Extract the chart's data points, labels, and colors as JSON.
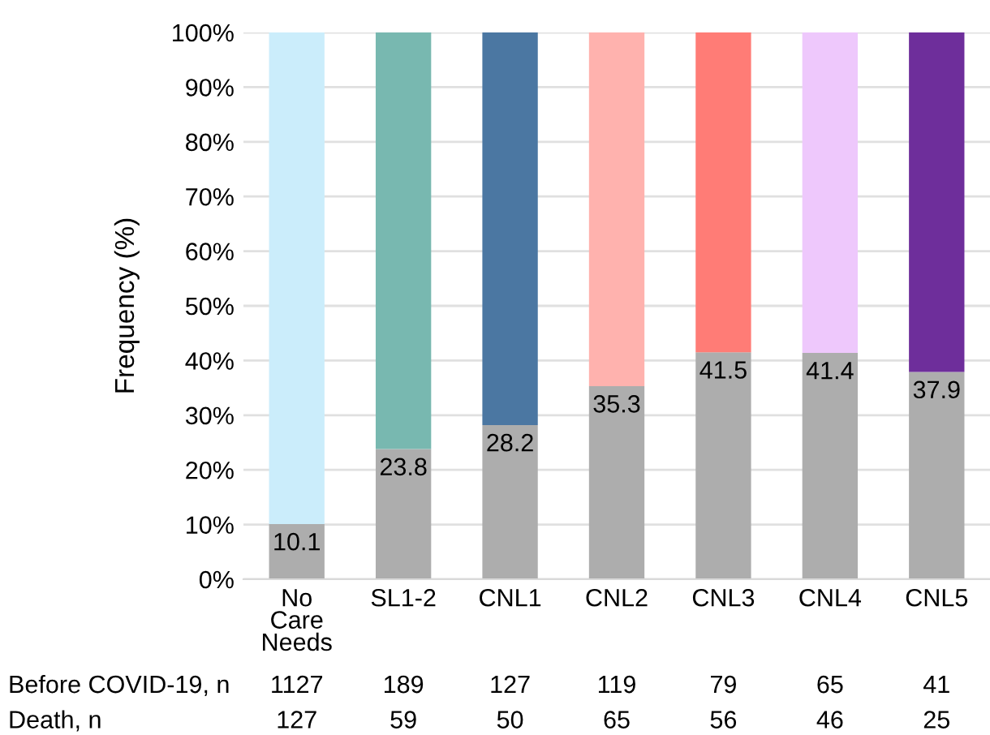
{
  "chart_data": {
    "type": "bar",
    "stacked": true,
    "ylabel": "Frequency (%)",
    "categories": [
      "No Care Needs",
      "SL1-2",
      "CNL1",
      "CNL2",
      "CNL3",
      "CNL4",
      "CNL5"
    ],
    "series": [
      {
        "color": "#adadad",
        "values": [
          10.1,
          23.8,
          28.2,
          35.3,
          41.5,
          41.4,
          37.9
        ],
        "value_labels": [
          "10.1",
          "23.8",
          "28.2",
          "35.3",
          "41.5",
          "41.4",
          "37.9"
        ]
      },
      {
        "colors": [
          "#cbedfb",
          "#78b8b0",
          "#4b77a2",
          "#ffb2ae",
          "#ff7c76",
          "#eec8fc",
          "#6e2e9b"
        ],
        "values": [
          89.9,
          76.2,
          71.8,
          64.7,
          58.5,
          58.6,
          62.1
        ]
      }
    ],
    "ylim": [
      0,
      100
    ],
    "yticks": [
      {
        "value": 0,
        "label": "0%"
      },
      {
        "value": 10,
        "label": "10%"
      },
      {
        "value": 20,
        "label": "20%"
      },
      {
        "value": 30,
        "label": "30%"
      },
      {
        "value": 40,
        "label": "40%"
      },
      {
        "value": 50,
        "label": "50%"
      },
      {
        "value": 60,
        "label": "60%"
      },
      {
        "value": 70,
        "label": "70%"
      },
      {
        "value": 80,
        "label": "80%"
      },
      {
        "value": 90,
        "label": "90%"
      },
      {
        "value": 100,
        "label": "100%"
      }
    ],
    "grid": "y",
    "annotations": [
      "Before COVID-19, n",
      "1127",
      "189",
      "127",
      "119",
      "79",
      "65",
      "41",
      "Death, n",
      "127",
      "59",
      "50",
      "65",
      "56",
      "46",
      "25"
    ]
  }
}
